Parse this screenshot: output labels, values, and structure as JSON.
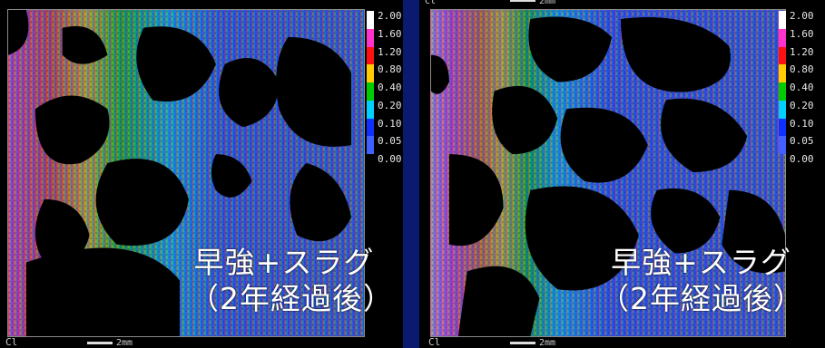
{
  "colorbar": {
    "ticks": [
      "2.00",
      "1.60",
      "1.20",
      "0.80",
      "0.40",
      "0.20",
      "0.10",
      "0.05",
      "0.00"
    ],
    "colors": [
      "#ffffff",
      "#ff33cc",
      "#ff1010",
      "#ffcc00",
      "#00cc00",
      "#00d0ff",
      "#1030ff",
      "#4060ff",
      "#6a6a6a"
    ]
  },
  "left": {
    "caption_line1": "早強+スラグ",
    "caption_line2": "（2年経過後）",
    "corner_label": "Cl",
    "scale_label": "2mm"
  },
  "right": {
    "caption_line1": "早強+スラグ",
    "caption_line2": "（2年経過後）",
    "corner_label": "Cl",
    "scale_label": "2mm",
    "top_corner_label": "Cl",
    "top_scale_label": "2mm"
  }
}
